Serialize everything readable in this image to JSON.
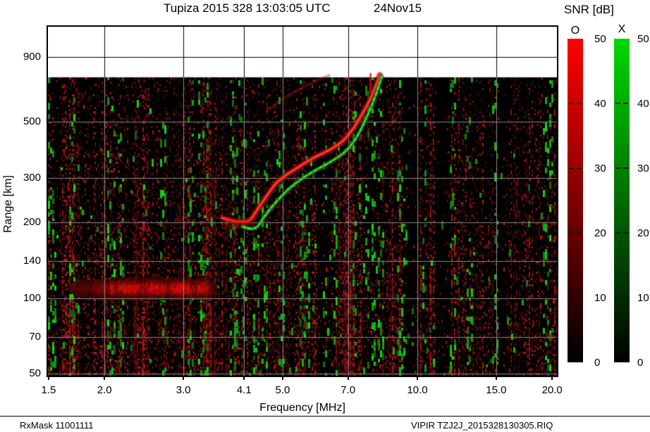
{
  "title": {
    "main": "Tupiza 2015 328 13:03:05 UTC",
    "date": "24Nov15"
  },
  "colorbar_panel": {
    "title": "SNR [dB]",
    "tick_values": [
      50,
      40,
      30,
      20,
      10,
      0
    ],
    "bars": [
      {
        "label": "O",
        "color_top": "#ff0000",
        "color_bottom": "#000000"
      },
      {
        "label": "X",
        "color_top": "#00d800",
        "color_bottom": "#000000"
      }
    ]
  },
  "footer": {
    "left": "RxMask 11001111",
    "right": "VIPIR  TZJ2J_2015328130305.RIQ"
  },
  "chart_data": {
    "type": "heatmap",
    "kind": "ionogram",
    "title": "Tupiza 2015 328 13:03:05 UTC",
    "date_label": "24Nov15",
    "xlabel": "Frequency [MHz]",
    "ylabel": "Range [km]",
    "x_scale": "log",
    "y_scale": "log",
    "x_ticks": [
      1.5,
      2.0,
      3.0,
      4.1,
      5.0,
      7.0,
      10.0,
      15.0,
      20.0
    ],
    "y_ticks": [
      50,
      70,
      100,
      140,
      200,
      300,
      500,
      900
    ],
    "grid": true,
    "calibration": {
      "x_left": 1.495,
      "x_right": 20.5,
      "y_top": 1190,
      "y_bottom": 49.2,
      "data_top_km": 750
    },
    "snr_scale": {
      "min": 0,
      "max": 50,
      "ticks": [
        50,
        40,
        30,
        20,
        10,
        0
      ],
      "o_color": "#ff0000",
      "x_color": "#00d800"
    },
    "o_trace": [
      [
        3.66,
        208
      ],
      [
        3.86,
        202
      ],
      [
        4.08,
        200
      ],
      [
        4.23,
        202
      ],
      [
        4.4,
        226
      ],
      [
        4.6,
        253
      ],
      [
        4.82,
        285
      ],
      [
        5.08,
        307
      ],
      [
        5.36,
        326
      ],
      [
        5.66,
        347
      ],
      [
        5.97,
        366
      ],
      [
        6.26,
        380
      ],
      [
        6.55,
        398
      ],
      [
        6.82,
        419
      ],
      [
        7.02,
        444
      ],
      [
        7.23,
        476
      ],
      [
        7.41,
        511
      ],
      [
        7.56,
        545
      ],
      [
        7.72,
        581
      ],
      [
        7.88,
        624
      ],
      [
        8.02,
        674
      ],
      [
        8.13,
        718
      ],
      [
        8.24,
        766
      ]
    ],
    "x_trace": [
      [
        4.07,
        192
      ],
      [
        4.23,
        187
      ],
      [
        4.39,
        190
      ],
      [
        4.53,
        208
      ],
      [
        4.72,
        229
      ],
      [
        4.93,
        250
      ],
      [
        5.17,
        272
      ],
      [
        5.44,
        292
      ],
      [
        5.72,
        310
      ],
      [
        6.01,
        326
      ],
      [
        6.3,
        341
      ],
      [
        6.57,
        357
      ],
      [
        6.82,
        373
      ],
      [
        7.02,
        393
      ],
      [
        7.21,
        416
      ],
      [
        7.38,
        446
      ],
      [
        7.54,
        479
      ],
      [
        7.69,
        518
      ],
      [
        7.85,
        559
      ],
      [
        7.99,
        608
      ],
      [
        8.13,
        661
      ],
      [
        8.24,
        714
      ],
      [
        8.33,
        756
      ]
    ],
    "second_hop_trace": [
      [
        4.6,
        552
      ],
      [
        4.81,
        589
      ],
      [
        5.04,
        624
      ],
      [
        5.33,
        661
      ],
      [
        5.66,
        700
      ],
      [
        6.01,
        737
      ],
      [
        6.36,
        766
      ]
    ],
    "e_region": {
      "f_range": [
        1.62,
        3.6
      ],
      "core_f_range": [
        2.05,
        3.4
      ],
      "alt_center_km": 110,
      "alt_spread_km": 13,
      "tail_alt_km": 100
    },
    "interference_streak": {
      "f_mhz": 7.85,
      "range_km": [
        648,
        780
      ]
    },
    "green_column_freqs": [
      1.5,
      1.53,
      1.68,
      2.04,
      2.08,
      2.17,
      2.69,
      3.11,
      3.25,
      3.34,
      3.86,
      3.94,
      4.07,
      4.35,
      4.55,
      4.93,
      5.53,
      5.64,
      6.18,
      6.52,
      7.21,
      7.66,
      7.93,
      8.22,
      9.1,
      9.3,
      10.3,
      11.9,
      13.0,
      14.9,
      19.3,
      19.8
    ],
    "dark_column_freqs": [
      6.1,
      9.6,
      11.35,
      15.2
    ],
    "bright_column_freqs": [
      1.65,
      2.4,
      3.0,
      3.4,
      7.0,
      8.8
    ],
    "noise_seed": 1124
  }
}
